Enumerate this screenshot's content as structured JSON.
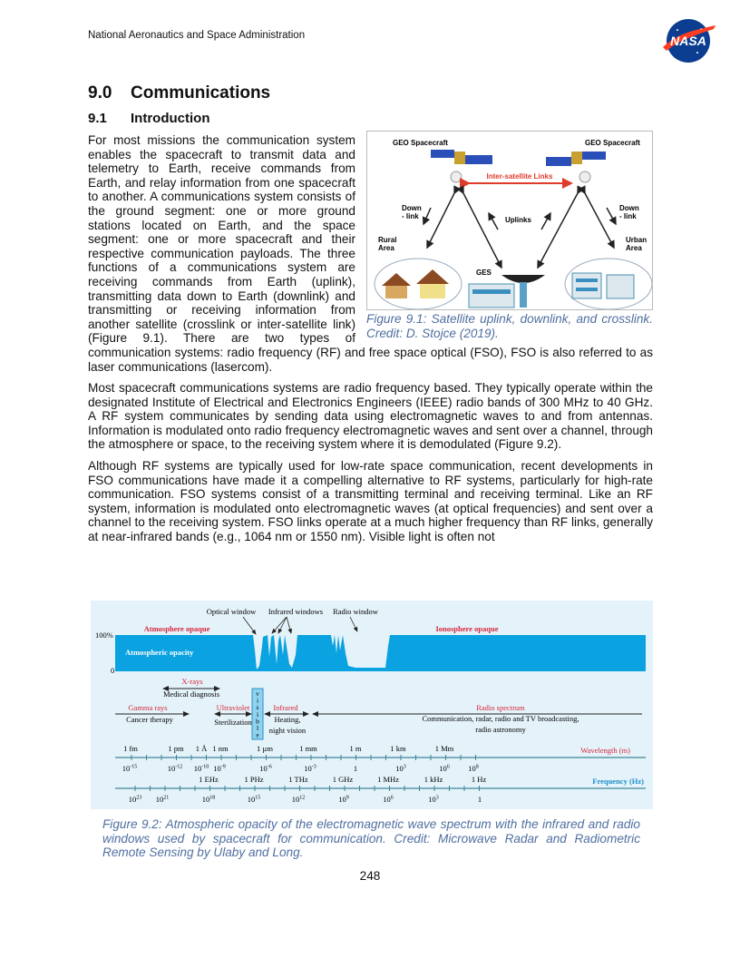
{
  "header": {
    "org": "National Aeronautics and Space Administration",
    "logo_text": "NASA"
  },
  "section": {
    "number": "9.0",
    "title": "Communications"
  },
  "subsection": {
    "number": "9.1",
    "title": "Introduction"
  },
  "paragraphs": [
    "For most missions the communication system enables the spacecraft to transmit data and telemetry to Earth, receive commands from Earth, and relay information from one spacecraft to another. A communications system consists of the ground segment: one or more ground stations located on Earth, and the space segment: one or more spacecraft and their respective communication payloads. The three functions of a communications system are receiving commands from Earth (uplink), transmitting data down to Earth (downlink) and transmitting or receiving information from another satellite (crosslink or inter-satellite link) (Figure 9.1). There are two types of communication systems: radio frequency (RF) and free space optical (FSO), FSO is also referred to as laser communications (lasercom).",
    "Most spacecraft communications systems are radio frequency based. They typically operate within the designated Institute of Electrical and Electronics Engineers (IEEE) radio bands of 300 MHz to 40 GHz. A RF system communicates by sending data using electromagnetic waves to and from antennas. Information is modulated onto radio frequency electromagnetic waves and sent over a channel, through the atmosphere or space, to the receiving system where it is demodulated (Figure 9.2).",
    "Although RF systems are typically used for low-rate space communication, recent developments in FSO communications have made it a compelling alternative to RF systems, particularly for high-rate communication. FSO systems consist of a transmitting terminal and receiving terminal. Like an RF system, information is modulated onto electromagnetic waves (at optical frequencies) and sent over a channel to the receiving system. FSO links operate at a much higher frequency than RF links, generally at near-infrared bands (e.g., 1064 nm or 1550 nm). Visible light is often not"
  ],
  "figure1": {
    "labels": {
      "geo_left": "GEO Spacecraft",
      "geo_right": "GEO Spacecraft",
      "isl": "Inter-satellite Links",
      "down_left_1": "Down",
      "down_left_2": "- link",
      "down_right_1": "Down",
      "down_right_2": "- link",
      "uplinks": "Uplinks",
      "rural_1": "Rural",
      "rural_2": "Area",
      "urban_1": "Urban",
      "urban_2": "Area",
      "ges": "GES"
    },
    "caption": "Figure 9.1: Satellite uplink, downlink, and crosslink. Credit: D. Stojce (2019)."
  },
  "figure2": {
    "colors": {
      "background": "#e4f3fa",
      "opacity_fill": "#0aa2e0",
      "red_label": "#d8263c",
      "blue_label": "#1a8fc9",
      "axis": "#3f8596"
    },
    "windows": {
      "optical": "Optical window",
      "infrared": "Infrared windows",
      "radio": "Radio window"
    },
    "opaque": {
      "atmosphere": "Atmosphere opaque",
      "ionosphere": "Ionosphere opaque",
      "series": "Atmospheric opacity",
      "y_max": "100%",
      "y_min": "0"
    },
    "bands": {
      "xrays": "X-rays",
      "xrays_use": "Medical diagnosis",
      "gamma": "Gamma rays",
      "gamma_use": "Cancer therapy",
      "uv": "Ultraviolet",
      "uv_use": "Sterilization",
      "visible": "visible",
      "ir": "Infrared",
      "ir_use_1": "Heating,",
      "ir_use_2": "night vision",
      "radio": "Radio spectrum",
      "radio_use_1": "Communication, radar, radio and TV broadcasting,",
      "radio_use_2": "radio astronomy"
    },
    "wavelength": {
      "label": "Wavelength (m)",
      "names": [
        "1 fm",
        "1 pm",
        "1 Å",
        "1 nm",
        "1 µm",
        "1 mm",
        "1 m",
        "1 km",
        "1 Mm"
      ],
      "powers": [
        {
          "b": "10",
          "e": "-15"
        },
        {
          "b": "10",
          "e": "-12"
        },
        {
          "b": "10",
          "e": "-10"
        },
        {
          "b": "10",
          "e": "-9"
        },
        {
          "b": "10",
          "e": "-6"
        },
        {
          "b": "10",
          "e": "-3"
        },
        {
          "b": "1",
          "e": ""
        },
        {
          "b": "10",
          "e": "3"
        },
        {
          "b": "10",
          "e": "6"
        },
        {
          "b": "10",
          "e": "8"
        }
      ]
    },
    "frequency": {
      "label": "Frequency (Hz)",
      "names": [
        "1 EHz",
        "1 PHz",
        "1 THz",
        "1 GHz",
        "1 MHz",
        "1 kHz",
        "1 Hz"
      ],
      "powers": [
        {
          "b": "10",
          "e": "23"
        },
        {
          "b": "10",
          "e": "21"
        },
        {
          "b": "10",
          "e": "18"
        },
        {
          "b": "10",
          "e": "15"
        },
        {
          "b": "10",
          "e": "12"
        },
        {
          "b": "10",
          "e": "9"
        },
        {
          "b": "10",
          "e": "6"
        },
        {
          "b": "10",
          "e": "3"
        },
        {
          "b": "1",
          "e": ""
        }
      ]
    },
    "caption": "Figure 9.2: Atmospheric opacity of the electromagnetic wave spectrum with the infrared and radio windows used by spacecraft for communication. Credit: Microwave Radar and Radiometric Remote Sensing by Ulaby and Long."
  },
  "page_number": "248"
}
